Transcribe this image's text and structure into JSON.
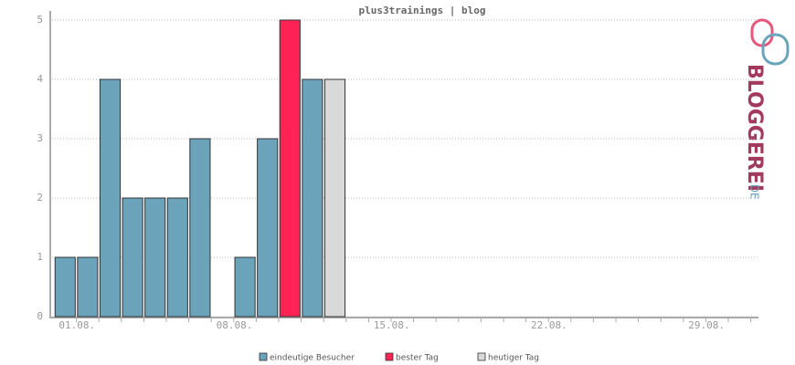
{
  "chart_data": {
    "type": "bar",
    "title": "plus3trainings | blog",
    "categories": [
      "01.08.",
      null,
      null,
      null,
      null,
      null,
      null,
      "08.08.",
      null,
      null,
      null,
      null,
      null,
      null,
      "15.08.",
      null,
      null,
      null,
      null,
      null,
      null,
      "22.08.",
      null,
      null,
      null,
      null,
      null,
      null,
      "29.08.",
      null,
      null
    ],
    "series": [
      {
        "name": "eindeutige Besucher",
        "color": "#6ba3bb",
        "values": [
          1,
          1,
          4,
          2,
          2,
          2,
          3,
          0,
          1,
          3,
          null,
          4,
          null,
          null,
          null,
          null,
          null,
          null,
          null,
          null,
          null,
          null,
          null,
          null,
          null,
          null,
          null,
          null,
          null,
          null,
          null
        ]
      },
      {
        "name": "bester Tag",
        "color": "#ff2255",
        "values": [
          null,
          null,
          null,
          null,
          null,
          null,
          null,
          null,
          null,
          null,
          5,
          null,
          null,
          null,
          null,
          null,
          null,
          null,
          null,
          null,
          null,
          null,
          null,
          null,
          null,
          null,
          null,
          null,
          null,
          null,
          null
        ]
      },
      {
        "name": "heutiger Tag",
        "color": "#d9d9d9",
        "values": [
          null,
          null,
          null,
          null,
          null,
          null,
          null,
          null,
          null,
          null,
          null,
          null,
          4,
          null,
          null,
          null,
          null,
          null,
          null,
          null,
          null,
          null,
          null,
          null,
          null,
          null,
          null,
          null,
          null,
          null,
          null
        ]
      }
    ],
    "ylim": [
      0,
      5
    ],
    "yticks": [
      0,
      1,
      2,
      3,
      4,
      5
    ],
    "grid": true
  },
  "logo": {
    "text": "BLOGGEREI",
    "suffix": ".DE"
  }
}
